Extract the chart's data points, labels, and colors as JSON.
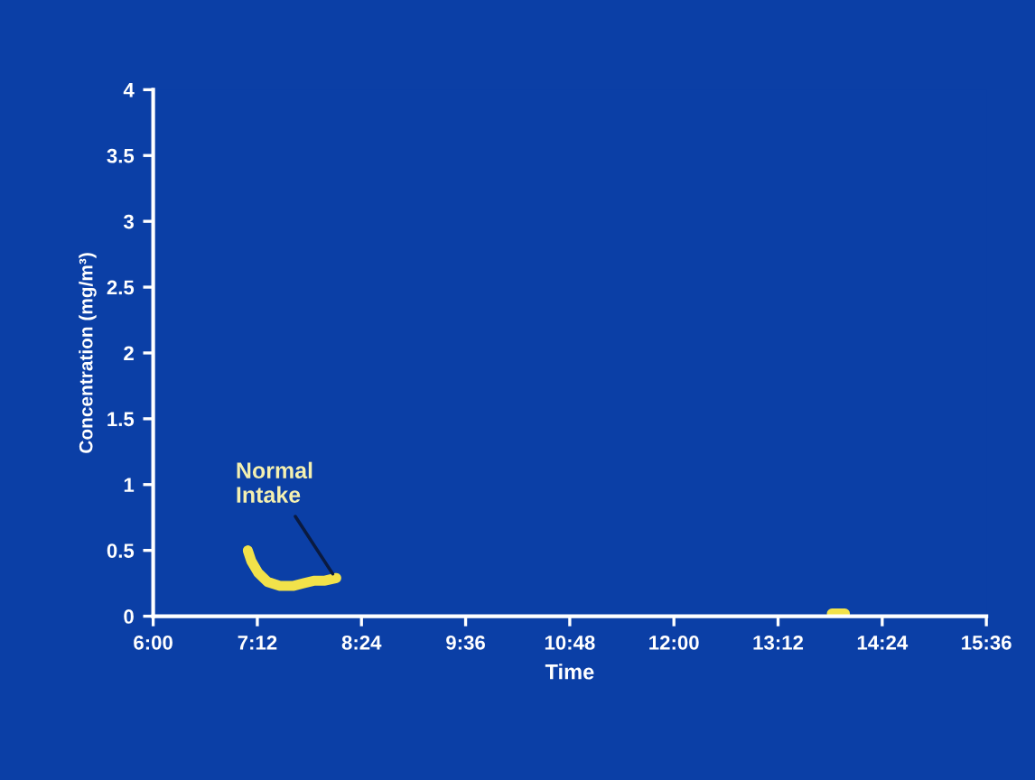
{
  "chart_data": {
    "type": "line",
    "xlabel": "Time",
    "ylabel": "Concentration (mg/m³)",
    "series": [
      {
        "color": "#f2e24a",
        "x": [
          7.09,
          7.13,
          7.21,
          7.32,
          7.46,
          7.61,
          7.73,
          7.86,
          7.98,
          8.11
        ],
        "values": [
          0.5,
          0.42,
          0.33,
          0.26,
          0.23,
          0.23,
          0.25,
          0.27,
          0.27,
          0.29
        ]
      },
      {
        "color": "#f2e24a",
        "x": [
          13.82,
          13.9,
          13.97
        ],
        "values": [
          0.02,
          0.02,
          0.02
        ]
      }
    ],
    "annotations": [
      {
        "text": "Normal\nIntake",
        "x": 8.1,
        "y": 0.29
      }
    ],
    "xlim": [
      6,
      15.6
    ],
    "xticks": [
      {
        "value": 6,
        "label": "6:00"
      },
      {
        "value": 7.2,
        "label": "7:12"
      },
      {
        "value": 8.4,
        "label": "8:24"
      },
      {
        "value": 9.6,
        "label": "9:36"
      },
      {
        "value": 10.8,
        "label": "10:48"
      },
      {
        "value": 12,
        "label": "12:00"
      },
      {
        "value": 13.2,
        "label": "13:12"
      },
      {
        "value": 14.4,
        "label": "14:24"
      },
      {
        "value": 15.6,
        "label": "15:36"
      }
    ],
    "ylim": [
      0,
      4
    ],
    "yticks": [
      0,
      0.5,
      1,
      1.5,
      2,
      2.5,
      3,
      3.5,
      4
    ],
    "grid": false,
    "marker": "none",
    "line_style": "solid"
  }
}
